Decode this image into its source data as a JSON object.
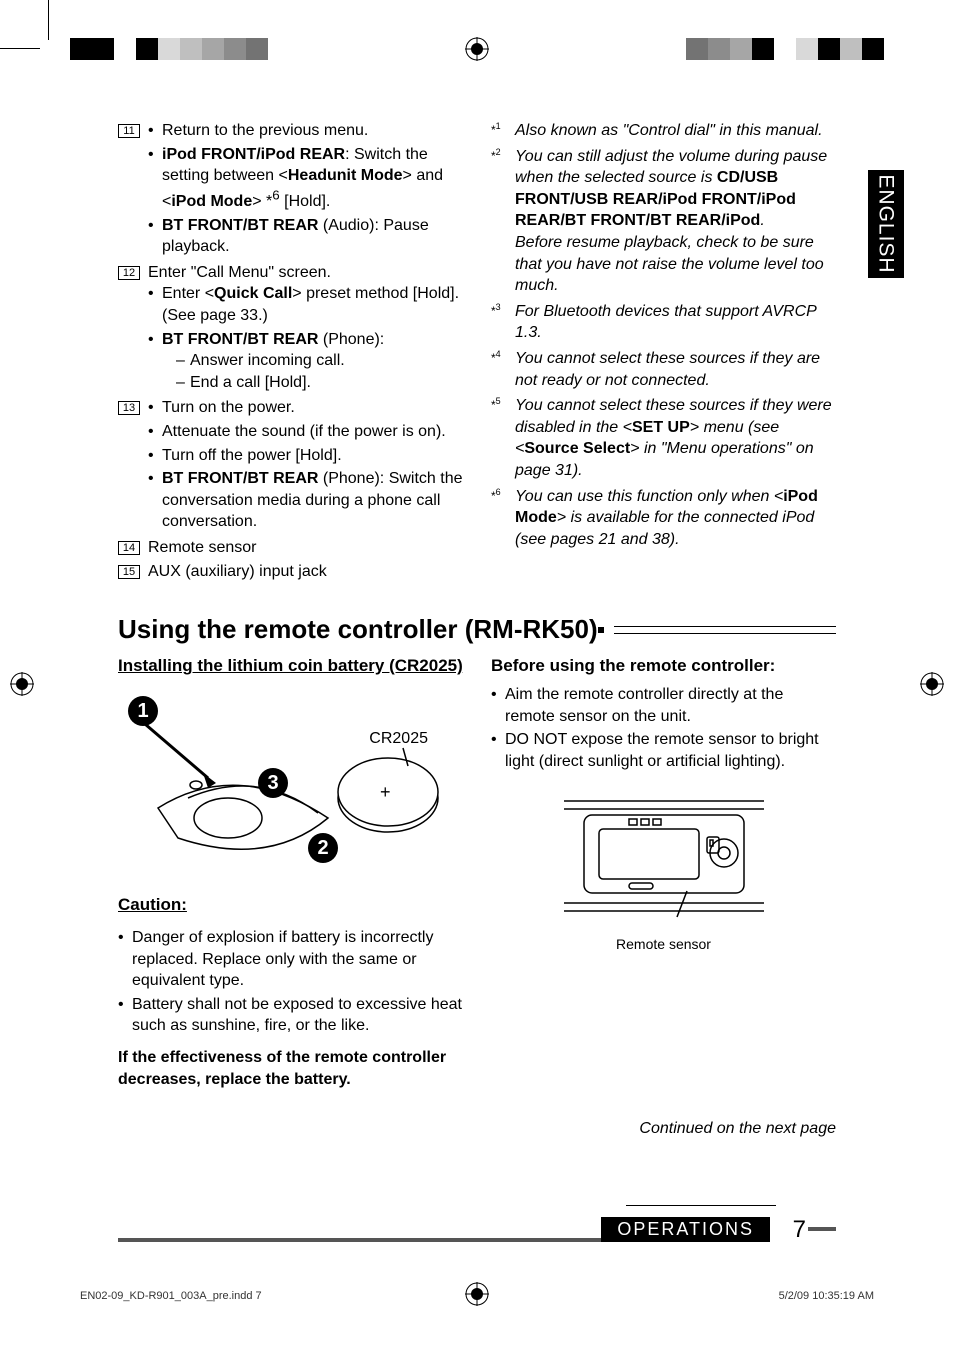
{
  "language_tab": "ENGLISH",
  "top_bar": {
    "left_colors": [
      "#000000",
      "#000000",
      "#ffffff",
      "#000000",
      "#d9d9d9",
      "#bfbfbf",
      "#a6a6a6",
      "#8c8c8c",
      "#737373"
    ],
    "right_colors": [
      "#737373",
      "#8c8c8c",
      "#a6a6a6",
      "#000000",
      "#ffffff",
      "#d9d9d9",
      "#000000",
      "#bfbfbf",
      "#000000"
    ],
    "seg_width": 22
  },
  "left_items": [
    {
      "num": "11",
      "bullets": [
        {
          "text": "Return to the previous menu."
        },
        {
          "runs": [
            {
              "t": "iPod FRONT/iPod REAR",
              "b": true
            },
            {
              "t": ": Switch the setting between <"
            },
            {
              "t": "Headunit Mode",
              "b": true
            },
            {
              "t": "> and <"
            },
            {
              "t": "iPod Mode",
              "b": true
            },
            {
              "t": "> *"
            },
            {
              "t": "6",
              "sup": true
            },
            {
              "t": " [Hold]."
            }
          ]
        },
        {
          "runs": [
            {
              "t": "BT FRONT/BT REAR",
              "b": true
            },
            {
              "t": " (Audio): Pause playback."
            }
          ]
        }
      ]
    },
    {
      "num": "12",
      "lead": "Enter \"Call Menu\" screen.",
      "bullets": [
        {
          "runs": [
            {
              "t": "Enter <"
            },
            {
              "t": "Quick Call",
              "b": true
            },
            {
              "t": "> preset method [Hold]. (See page 33.)"
            }
          ]
        },
        {
          "runs": [
            {
              "t": "BT FRONT/BT REAR",
              "b": true
            },
            {
              "t": " (Phone):"
            }
          ],
          "dashes": [
            "Answer incoming call.",
            "End a call [Hold]."
          ]
        }
      ]
    },
    {
      "num": "13",
      "bullets": [
        {
          "text": "Turn on the power."
        },
        {
          "text": "Attenuate the sound (if the power is on)."
        },
        {
          "text": "Turn off the power [Hold]."
        },
        {
          "runs": [
            {
              "t": "BT FRONT/BT REAR",
              "b": true
            },
            {
              "t": " (Phone): Switch the conversation media during a phone call conversation."
            }
          ]
        }
      ]
    },
    {
      "num": "14",
      "lead": "Remote sensor"
    },
    {
      "num": "15",
      "lead": "AUX (auxiliary) input jack"
    }
  ],
  "footnotes": [
    {
      "n": "1",
      "runs": [
        {
          "t": "Also known as \"Control dial\" in this manual.",
          "i": true
        }
      ]
    },
    {
      "n": "2",
      "runs": [
        {
          "t": "You can still adjust the volume during pause when the selected source is ",
          "i": true
        },
        {
          "t": "CD/USB FRONT/USB REAR/iPod FRONT/iPod REAR/BT FRONT/BT REAR/iPod",
          "b": true
        },
        {
          "t": ".",
          "i": true
        }
      ],
      "tail": "Before resume playback, check to be sure that you have not raise the volume level too much."
    },
    {
      "n": "3",
      "runs": [
        {
          "t": "For Bluetooth devices that support AVRCP 1.3.",
          "i": true
        }
      ]
    },
    {
      "n": "4",
      "runs": [
        {
          "t": "You cannot select these sources if they are not ready or not connected.",
          "i": true
        }
      ]
    },
    {
      "n": "5",
      "runs": [
        {
          "t": "You cannot select these sources if they were disabled in the <",
          "i": true
        },
        {
          "t": "SET UP",
          "b": true
        },
        {
          "t": "> menu (see <",
          "i": true
        },
        {
          "t": "Source Select",
          "b": true
        },
        {
          "t": "> in \"Menu operations\" on page 31).",
          "i": true
        }
      ]
    },
    {
      "n": "6",
      "runs": [
        {
          "t": "You can use this function only when <",
          "i": true
        },
        {
          "t": "iPod Mode",
          "b": true
        },
        {
          "t": "> is available for the connected iPod (see pages 21 and 38).",
          "i": true
        }
      ]
    }
  ],
  "section_title": "Using the remote controller (RM-RK50)",
  "install_heading": "Installing the lithium coin battery (CR2025)",
  "battery_label": "CR2025",
  "steps": [
    "1",
    "2",
    "3"
  ],
  "caution_heading": "Caution:",
  "caution_items": [
    "Danger of explosion if battery is incorrectly replaced. Replace only with the same or equivalent type.",
    "Battery shall not be exposed to excessive heat such as sunshine, fire, or the like."
  ],
  "effectiveness_note": "If the effectiveness of the remote controller decreases, replace the battery.",
  "before_heading": "Before using the remote controller:",
  "before_items": [
    "Aim the remote controller directly at the remote sensor on the unit.",
    "DO NOT expose the remote sensor to bright light (direct sunlight or artificial lighting)."
  ],
  "remote_caption": "Remote sensor",
  "continued": "Continued on the next page",
  "footer_label": "OPERATIONS",
  "page_number": "7",
  "print_file": "EN02-09_KD-R901_003A_pre.indd   7",
  "print_time": "5/2/09   10:35:19 AM"
}
